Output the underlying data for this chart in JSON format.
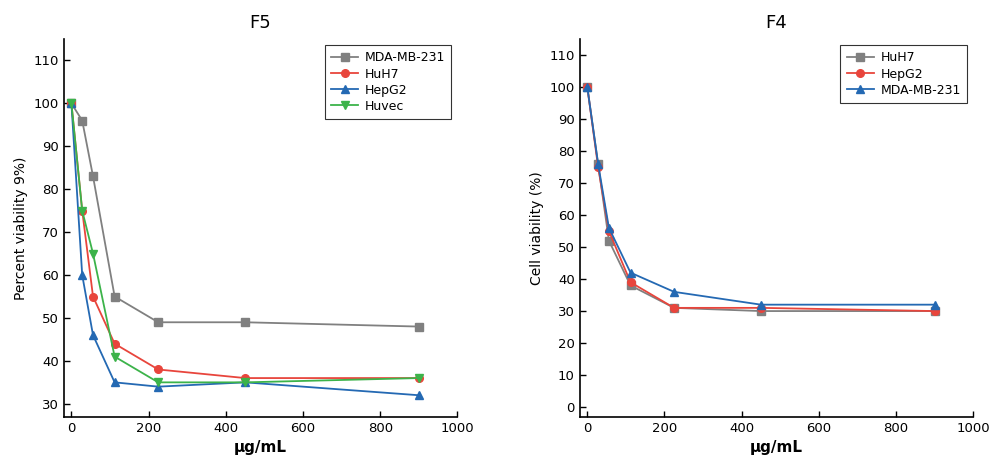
{
  "F5": {
    "title": "F5",
    "xlabel": "μg/mL",
    "ylabel": "Percent viability 9%)",
    "xlim": [
      -20,
      1000
    ],
    "ylim": [
      27,
      115
    ],
    "yticks": [
      30,
      40,
      50,
      60,
      70,
      80,
      90,
      100,
      110
    ],
    "xticks": [
      0,
      200,
      400,
      600,
      800,
      1000
    ],
    "x": [
      0,
      28,
      56,
      112,
      225,
      450,
      900
    ],
    "series": [
      {
        "label": "MDA-MB-231",
        "color": "#808080",
        "marker": "s",
        "values": [
          100,
          96,
          83,
          55,
          49,
          49,
          48
        ]
      },
      {
        "label": "HuH7",
        "color": "#e8453c",
        "marker": "o",
        "values": [
          100,
          75,
          55,
          44,
          38,
          36,
          36
        ]
      },
      {
        "label": "HepG2",
        "color": "#2469b3",
        "marker": "^",
        "values": [
          100,
          60,
          46,
          35,
          34,
          35,
          32
        ]
      },
      {
        "label": "Huvec",
        "color": "#3cb34a",
        "marker": "v",
        "values": [
          100,
          75,
          65,
          41,
          35,
          35,
          36
        ]
      }
    ]
  },
  "F4": {
    "title": "F4",
    "xlabel": "μg/mL",
    "ylabel": "Cell viability (%)",
    "xlim": [
      -20,
      1000
    ],
    "ylim": [
      -3,
      115
    ],
    "yticks": [
      0,
      10,
      20,
      30,
      40,
      50,
      60,
      70,
      80,
      90,
      100,
      110
    ],
    "xticks": [
      0,
      200,
      400,
      600,
      800,
      1000
    ],
    "x": [
      0,
      28,
      56,
      112,
      225,
      450,
      900
    ],
    "series": [
      {
        "label": "HuH7",
        "color": "#808080",
        "marker": "s",
        "values": [
          100,
          76,
          52,
          38,
          31,
          30,
          30
        ]
      },
      {
        "label": "HepG2",
        "color": "#e8453c",
        "marker": "o",
        "values": [
          100,
          75,
          55,
          39,
          31,
          31,
          30
        ]
      },
      {
        "label": "MDA-MB-231",
        "color": "#2469b3",
        "marker": "^",
        "values": [
          100,
          76,
          56,
          42,
          36,
          32,
          32
        ]
      }
    ]
  },
  "fig_width": 10.04,
  "fig_height": 4.69,
  "dpi": 100
}
